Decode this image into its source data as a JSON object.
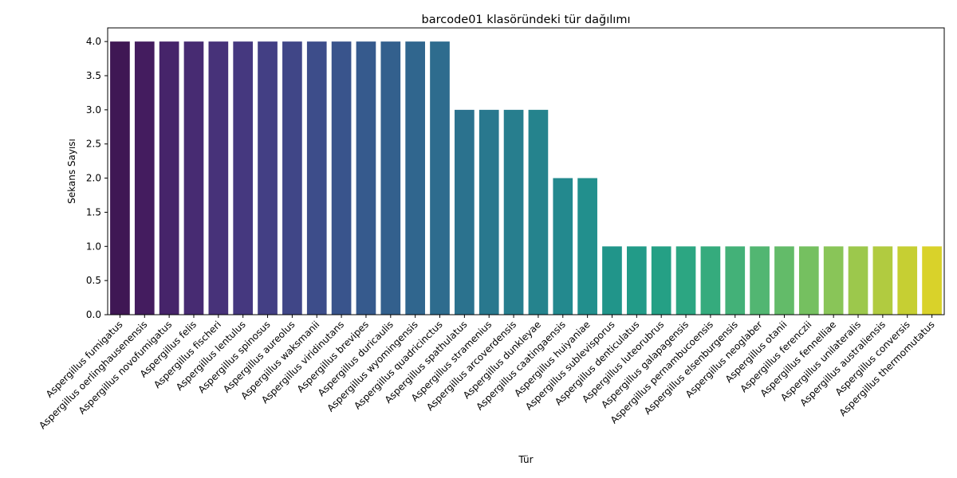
{
  "chart_data": {
    "type": "bar",
    "title": "barcode01 klasöründeki tür dağılımı",
    "xlabel": "Tür",
    "ylabel": "Sekans Sayısı",
    "ylim": [
      0,
      4.2
    ],
    "yticks": [
      "0.0",
      "0.5",
      "1.0",
      "1.5",
      "2.0",
      "2.5",
      "3.0",
      "3.5",
      "4.0"
    ],
    "grid": false,
    "legend": "none",
    "palette": "viridis",
    "categories": [
      "Aspergillus fumigatus",
      "Aspergillus oerlinghausenensis",
      "Aspergillus novofumigatus",
      "Aspergillus felis",
      "Aspergillus fischeri",
      "Aspergillus lentulus",
      "Aspergillus spinosus",
      "Aspergillus aureolus",
      "Aspergillus waksmanii",
      "Aspergillus viridinutans",
      "Aspergillus brevipes",
      "Aspergillus duricaulis",
      "Aspergillus wyomingensis",
      "Aspergillus quadricinctus",
      "Aspergillus spathulatus",
      "Aspergillus stramenius",
      "Aspergillus arcoverdensis",
      "Aspergillus dunkleyae",
      "Aspergillus caatingaensis",
      "Aspergillus huiyaniae",
      "Aspergillus sublevisporus",
      "Aspergillus denticulatus",
      "Aspergillus luteorubrus",
      "Aspergillus galapagensis",
      "Aspergillus pernambucoensis",
      "Aspergillus elsenburgensis",
      "Aspergillus neoglaber",
      "Aspergillus otanii",
      "Aspergillus ferenczii",
      "Aspergillus fennelliae",
      "Aspergillus unilateralis",
      "Aspergillus australiensis",
      "Aspergillus conversis",
      "Aspergillus thermomutatus"
    ],
    "values": [
      4,
      4,
      4,
      4,
      4,
      4,
      4,
      4,
      4,
      4,
      4,
      4,
      4,
      4,
      3,
      3,
      3,
      3,
      2,
      2,
      1,
      1,
      1,
      1,
      1,
      1,
      1,
      1,
      1,
      1,
      1,
      1,
      1,
      1
    ],
    "colors": [
      "#3f1754",
      "#441c5f",
      "#46246a",
      "#472b72",
      "#473279",
      "#45387f",
      "#433f84",
      "#404687",
      "#3d4d8a",
      "#39548c",
      "#365a8d",
      "#33608d",
      "#30668e",
      "#2e6c8e",
      "#2b728e",
      "#29788e",
      "#277e8e",
      "#25838d",
      "#23898e",
      "#228f8d",
      "#21958a",
      "#229b88",
      "#25a085",
      "#2ca682",
      "#35ab7d",
      "#43b178",
      "#52b672",
      "#63bb69",
      "#75c060",
      "#89c558",
      "#9cc84c",
      "#b1cb40",
      "#c6cf33",
      "#d9d22a"
    ]
  }
}
